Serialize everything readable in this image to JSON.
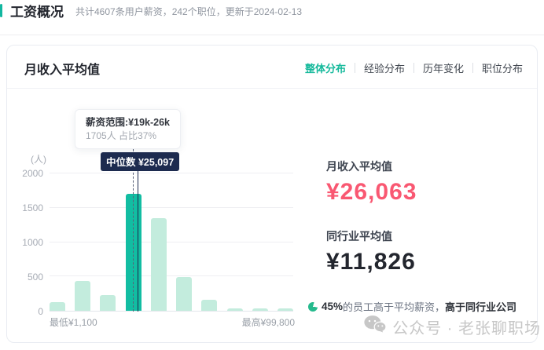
{
  "header": {
    "title": "工资概况",
    "subtitle": "共计4607条用户薪资，242个职位，更新于2024-02-13"
  },
  "card": {
    "title": "月收入平均值",
    "tabs": [
      {
        "label": "整体分布",
        "active": true
      },
      {
        "label": "经验分布",
        "active": false
      },
      {
        "label": "历年变化",
        "active": false
      },
      {
        "label": "职位分布",
        "active": false
      }
    ]
  },
  "chart_data": {
    "type": "bar",
    "title": "月收入平均值整体分布",
    "ylabel": "(人)",
    "ylim": [
      0,
      2000
    ],
    "yticks": [
      0,
      500,
      1000,
      1500,
      2000
    ],
    "grid": true,
    "values": [
      130,
      440,
      230,
      1705,
      1350,
      490,
      160,
      35,
      40,
      35
    ],
    "highlighted_index": 3,
    "x_min_label": "最低¥1,100",
    "x_max_label": "最高¥99,800",
    "tooltip": {
      "title": "薪资范围:¥19k-26k",
      "detail": "1705人 占比37%"
    },
    "median_label": "中位数 ¥25,097",
    "colors": {
      "bar": "#c3ecdd",
      "bar_highlight": "#12bda2"
    }
  },
  "stats": [
    {
      "label": "月收入平均值",
      "value": "¥26,063",
      "color": "#f95872"
    },
    {
      "label": "同行业平均值",
      "value": "¥11,826",
      "color": "#23262e"
    }
  ],
  "footnote": {
    "pct": "45%",
    "text": "的员工高于平均薪资，",
    "bold_text": "高于同行业公司"
  },
  "watermark": {
    "text": "公众号 · 老张聊职场"
  }
}
